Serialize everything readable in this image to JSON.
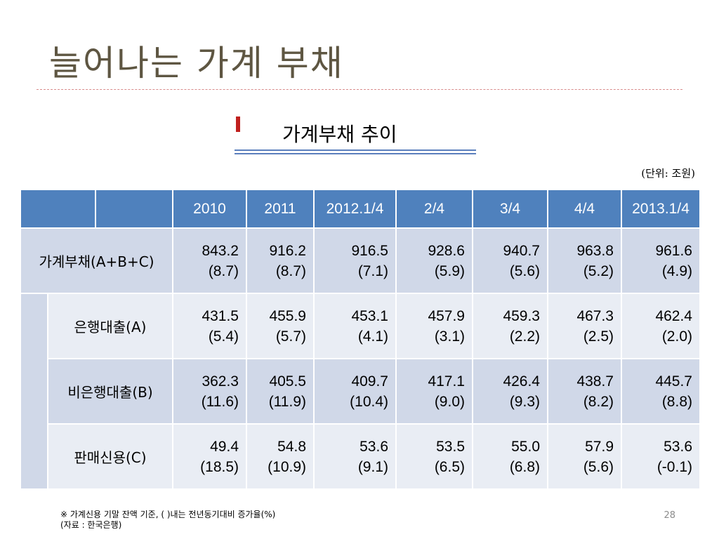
{
  "slide": {
    "title": "늘어나는 가계 부채",
    "table_title": "가계부채 추이",
    "unit": "(단위: 조원)",
    "page_number": "28"
  },
  "table": {
    "headers": [
      "2010",
      "2011",
      "2012.1/4",
      "2/4",
      "3/4",
      "4/4",
      "2013.1/4"
    ],
    "rows": [
      {
        "label": "가계부채(A+B+C)",
        "values": [
          "843.2",
          "916.2",
          "916.5",
          "928.6",
          "940.7",
          "963.8",
          "961.6"
        ],
        "changes": [
          "(8.7)",
          "(8.7)",
          "(7.1)",
          "(5.9)",
          "(5.6)",
          "(5.2)",
          "(4.9)"
        ]
      },
      {
        "label": "은행대출(A)",
        "values": [
          "431.5",
          "455.9",
          "453.1",
          "457.9",
          "459.3",
          "467.3",
          "462.4"
        ],
        "changes": [
          "(5.4)",
          "(5.7)",
          "(4.1)",
          "(3.1)",
          "(2.2)",
          "(2.5)",
          "(2.0)"
        ]
      },
      {
        "label": "비은행대출(B)",
        "values": [
          "362.3",
          "405.5",
          "409.7",
          "417.1",
          "426.4",
          "438.7",
          "445.7"
        ],
        "changes": [
          "(11.6)",
          "(11.9)",
          "(10.4)",
          "(9.0)",
          "(9.3)",
          "(8.2)",
          "(8.8)"
        ]
      },
      {
        "label": "판매신용(C)",
        "values": [
          "49.4",
          "54.8",
          "53.6",
          "53.5",
          "55.0",
          "57.9",
          "53.6"
        ],
        "changes": [
          "(18.5)",
          "(10.9)",
          "(9.1)",
          "(6.5)",
          "(6.8)",
          "(5.6)",
          "(-0.1)"
        ]
      }
    ]
  },
  "footnote": {
    "line1": "※ 가계신용 기말 잔액 기준, (  )내는 전년동기대비 증가율(%)",
    "line2": "(자료 : 한국은행)"
  },
  "colors": {
    "header": "#4f81bd",
    "row_dark": "#d0d8e8",
    "row_light": "#e9edf4",
    "title_text": "#5e5642",
    "accent_red": "#c0201e"
  }
}
